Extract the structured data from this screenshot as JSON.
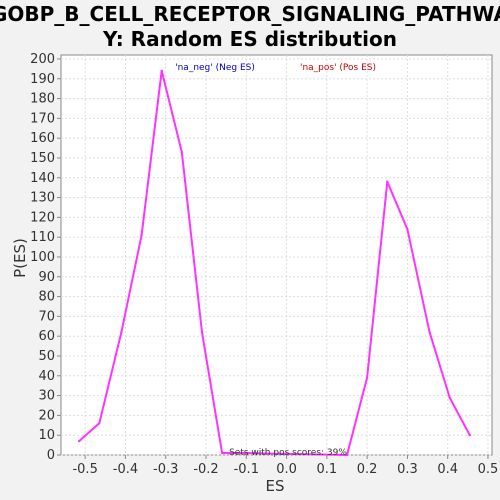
{
  "chart_data": {
    "type": "line",
    "title_lines": [
      "GOBP_B_CELL_RECEPTOR_SIGNALING_PATHWA",
      "Y: Random ES distribution"
    ],
    "xlabel": "ES",
    "ylabel": "P(ES)",
    "xlim": [
      -0.56,
      0.51
    ],
    "ylim": [
      0,
      202
    ],
    "xticks": [
      -0.5,
      -0.4,
      -0.3,
      -0.2,
      -0.1,
      0.0,
      0.1,
      0.2,
      0.3,
      0.4,
      0.5
    ],
    "yticks": [
      0,
      10,
      20,
      30,
      40,
      50,
      60,
      70,
      80,
      90,
      100,
      110,
      120,
      130,
      140,
      150,
      160,
      170,
      180,
      190,
      200
    ],
    "grid": true,
    "legend": [
      {
        "label": "'na_neg' (Neg ES)",
        "color": "#0000cc"
      },
      {
        "label": "'na_pos' (Pos ES)",
        "color": "#cc0000"
      }
    ],
    "annotation": "Sets with pos scores: 39%",
    "series": [
      {
        "color": "#ff33ff",
        "points": [
          {
            "x": -0.515,
            "y": 7
          },
          {
            "x": -0.465,
            "y": 16
          },
          {
            "x": -0.41,
            "y": 62
          },
          {
            "x": -0.36,
            "y": 111
          },
          {
            "x": -0.31,
            "y": 194
          },
          {
            "x": -0.26,
            "y": 153
          },
          {
            "x": -0.21,
            "y": 62
          },
          {
            "x": -0.16,
            "y": 1
          },
          {
            "x": -0.11,
            "y": 1
          },
          {
            "x": 0.15,
            "y": 0
          },
          {
            "x": 0.2,
            "y": 39
          },
          {
            "x": 0.25,
            "y": 138
          },
          {
            "x": 0.3,
            "y": 114
          },
          {
            "x": 0.355,
            "y": 62
          },
          {
            "x": 0.405,
            "y": 29
          },
          {
            "x": 0.455,
            "y": 10
          }
        ]
      }
    ]
  },
  "colors": {
    "background": "#f2f2f2",
    "plot_background": "#ffffff",
    "grid": "#dddddd",
    "axis": "#888888"
  }
}
